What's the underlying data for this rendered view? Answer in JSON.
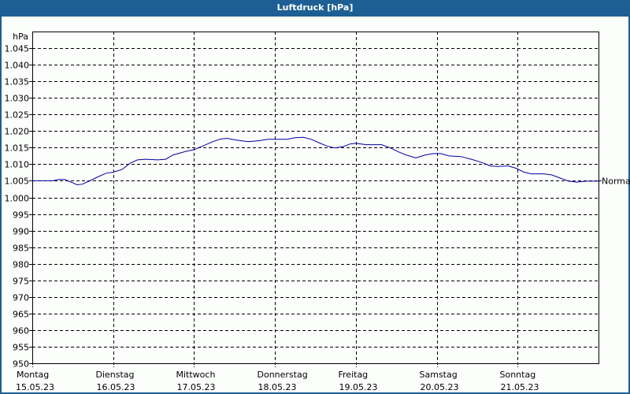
{
  "window": {
    "title": "Luftdruck [hPa]"
  },
  "chart_data": {
    "type": "line",
    "title": "Luftdruck [hPa]",
    "xlabel": "",
    "ylabel": "hPa",
    "ylim": [
      950,
      1050
    ],
    "y_ticks": [
      950,
      955,
      960,
      965,
      970,
      975,
      980,
      985,
      990,
      995,
      1000,
      1005,
      1010,
      1015,
      1020,
      1025,
      1030,
      1035,
      1040,
      1045
    ],
    "y_tick_labels": [
      "950",
      "955",
      "960",
      "965",
      "970",
      "975",
      "980",
      "985",
      "990",
      "995",
      "1.000",
      "1.005",
      "1.010",
      "1.015",
      "1.020",
      "1.025",
      "1.030",
      "1.035",
      "1.040",
      "1.045"
    ],
    "x_ticks": [
      {
        "day": "Montag",
        "date": "15.05.23"
      },
      {
        "day": "Dienstag",
        "date": "16.05.23"
      },
      {
        "day": "Mittwoch",
        "date": "17.05.23"
      },
      {
        "day": "Donnerstag",
        "date": "18.05.23"
      },
      {
        "day": "Freitag",
        "date": "19.05.23"
      },
      {
        "day": "Samstag",
        "date": "20.05.23"
      },
      {
        "day": "Sonntag",
        "date": "21.05.23"
      }
    ],
    "xlim_days": [
      0,
      7
    ],
    "grid": true,
    "reference_line": {
      "label": "Normal",
      "value": 1005
    },
    "series": [
      {
        "name": "Luftdruck",
        "color": "#0000a0",
        "points": [
          [
            0.0,
            1005.0
          ],
          [
            0.25,
            1005.0
          ],
          [
            0.33,
            1005.4
          ],
          [
            0.4,
            1005.4
          ],
          [
            0.48,
            1004.6
          ],
          [
            0.555,
            1003.8
          ],
          [
            0.62,
            1004.0
          ],
          [
            0.72,
            1005.1
          ],
          [
            0.82,
            1006.3
          ],
          [
            0.915,
            1007.3
          ],
          [
            1.0,
            1007.6
          ],
          [
            1.11,
            1008.4
          ],
          [
            1.21,
            1010.3
          ],
          [
            1.3,
            1011.3
          ],
          [
            1.4,
            1011.5
          ],
          [
            1.55,
            1011.3
          ],
          [
            1.65,
            1011.5
          ],
          [
            1.74,
            1012.8
          ],
          [
            1.89,
            1013.8
          ],
          [
            2.0,
            1014.4
          ],
          [
            2.11,
            1015.5
          ],
          [
            2.23,
            1016.8
          ],
          [
            2.33,
            1017.6
          ],
          [
            2.41,
            1017.8
          ],
          [
            2.52,
            1017.3
          ],
          [
            2.67,
            1016.8
          ],
          [
            2.81,
            1017.1
          ],
          [
            2.91,
            1017.5
          ],
          [
            3.0,
            1017.5
          ],
          [
            3.15,
            1017.5
          ],
          [
            3.25,
            1018.0
          ],
          [
            3.35,
            1018.1
          ],
          [
            3.45,
            1017.5
          ],
          [
            3.54,
            1016.5
          ],
          [
            3.64,
            1015.5
          ],
          [
            3.74,
            1014.9
          ],
          [
            3.84,
            1015.3
          ],
          [
            3.93,
            1016.1
          ],
          [
            4.0,
            1016.3
          ],
          [
            4.13,
            1015.9
          ],
          [
            4.32,
            1015.9
          ],
          [
            4.42,
            1015.0
          ],
          [
            4.52,
            1013.8
          ],
          [
            4.62,
            1012.8
          ],
          [
            4.74,
            1011.9
          ],
          [
            4.86,
            1012.8
          ],
          [
            4.96,
            1013.2
          ],
          [
            5.05,
            1013.2
          ],
          [
            5.15,
            1012.5
          ],
          [
            5.3,
            1012.3
          ],
          [
            5.44,
            1011.4
          ],
          [
            5.56,
            1010.5
          ],
          [
            5.66,
            1009.5
          ],
          [
            5.75,
            1009.3
          ],
          [
            5.88,
            1009.5
          ],
          [
            5.98,
            1008.8
          ],
          [
            6.08,
            1007.6
          ],
          [
            6.17,
            1007.1
          ],
          [
            6.32,
            1007.1
          ],
          [
            6.42,
            1006.8
          ],
          [
            6.53,
            1005.8
          ],
          [
            6.63,
            1004.9
          ],
          [
            6.73,
            1004.6
          ],
          [
            6.85,
            1004.9
          ],
          [
            7.0,
            1004.9
          ]
        ]
      }
    ],
    "legend": "none"
  }
}
